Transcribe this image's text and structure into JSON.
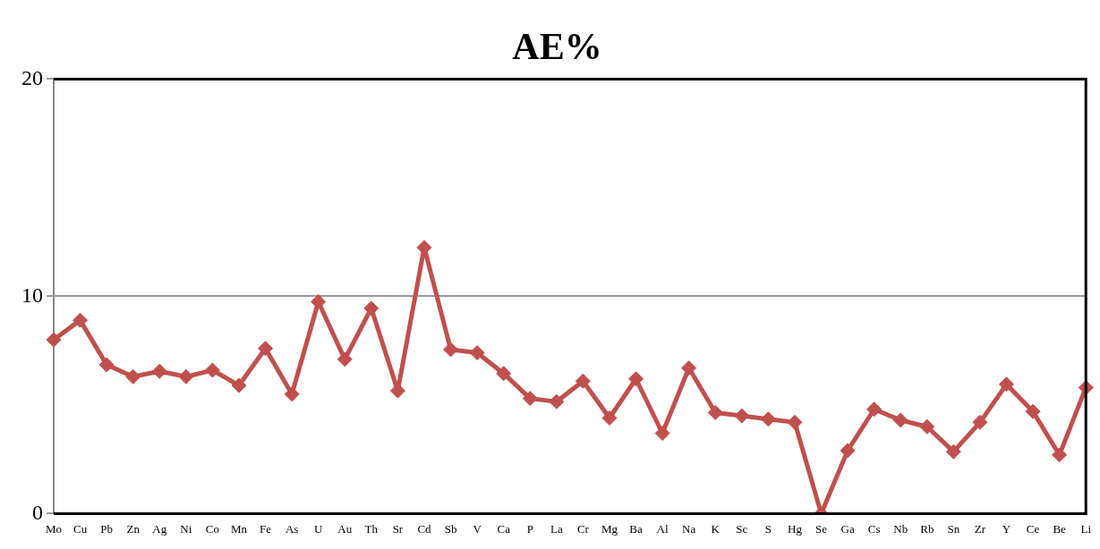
{
  "chart_data": {
    "type": "line",
    "title": "AE%",
    "categories": [
      "Mo",
      "Cu",
      "Pb",
      "Zn",
      "Ag",
      "Ni",
      "Co",
      "Mn",
      "Fe",
      "As",
      "U",
      "Au",
      "Th",
      "Sr",
      "Cd",
      "Sb",
      "V",
      "Ca",
      "P",
      "La",
      "Cr",
      "Mg",
      "Ba",
      "Al",
      "Na",
      "K",
      "Sc",
      "S",
      "Hg",
      "Se",
      "Ga",
      "Cs",
      "Nb",
      "Rb",
      "Sn",
      "Zr",
      "Y",
      "Ce",
      "Be",
      "Li"
    ],
    "series": [
      {
        "color": "#c0504d",
        "values": [
          8.0,
          8.9,
          6.85,
          6.3,
          6.55,
          6.3,
          6.6,
          5.9,
          7.6,
          5.5,
          9.75,
          7.1,
          9.45,
          5.65,
          12.25,
          7.55,
          7.4,
          6.45,
          5.3,
          5.15,
          6.1,
          4.4,
          6.2,
          3.7,
          6.7,
          4.65,
          4.5,
          4.35,
          4.2,
          0,
          2.9,
          4.8,
          4.3,
          4.0,
          2.85,
          4.2,
          5.95,
          4.7,
          2.7,
          5.8
        ]
      }
    ],
    "ylim": [
      0,
      20
    ],
    "yticks": [
      0,
      10,
      20
    ],
    "grid": "y",
    "legend": false,
    "marker": "diamond",
    "line_style": "solid"
  }
}
